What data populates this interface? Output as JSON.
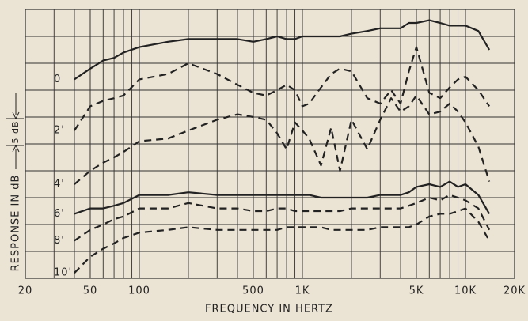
{
  "chart_data": {
    "type": "line",
    "title_x": "FREQUENCY IN HERTZ",
    "title_y": "RESPONSE IN dB",
    "scale_marker": "5 dB",
    "x": [
      40,
      50,
      60,
      70,
      80,
      100,
      150,
      200,
      300,
      400,
      500,
      600,
      700,
      800,
      900,
      1000,
      1100,
      1300,
      1500,
      1700,
      2000,
      2500,
      3000,
      3500,
      4000,
      4500,
      5000,
      6000,
      7000,
      8000,
      9000,
      10000,
      12000,
      14000
    ],
    "series": [
      {
        "name": "0",
        "color": "#222",
        "line_style": "solid",
        "values": [
          37,
          39,
          40.5,
          41,
          42,
          43,
          44,
          44.5,
          44.5,
          44.5,
          44,
          44.5,
          45,
          44.5,
          44.5,
          45,
          45,
          45,
          45,
          45,
          45.5,
          46,
          46.5,
          46.5,
          46.5,
          47.5,
          47.5,
          48,
          47.5,
          47,
          47,
          47,
          46,
          42.5
        ]
      },
      {
        "name": "2'",
        "color": "#222",
        "line_style": "dashed",
        "values": [
          27.5,
          32,
          33,
          33.5,
          34,
          37,
          38,
          40,
          38,
          36,
          34.5,
          34,
          35,
          36,
          35,
          32,
          32.5,
          35.5,
          38,
          39,
          38.5,
          33.5,
          32.5,
          35,
          32.5,
          38.5,
          43,
          34.5,
          33.5,
          35.5,
          37,
          37.5,
          35,
          32
        ]
      },
      {
        "name": "4'",
        "color": "#222",
        "line_style": "dashed",
        "values": [
          17.5,
          20,
          21.5,
          22.5,
          23.5,
          25.5,
          26,
          27.5,
          29.5,
          30.5,
          30,
          29.5,
          27,
          24,
          29,
          27.5,
          26,
          21,
          28,
          20,
          29.5,
          24,
          29.5,
          33.5,
          31,
          32,
          34,
          30.5,
          31,
          32.5,
          31,
          29,
          24.5,
          18
        ]
      },
      {
        "name": "6'",
        "color": "#222",
        "line_style": "solid",
        "values": [
          12,
          13,
          13,
          13.5,
          14,
          15.5,
          15.5,
          16,
          15.5,
          15.5,
          15.5,
          15.5,
          15.5,
          15.5,
          15.5,
          15.5,
          15.5,
          15,
          15,
          15,
          15,
          15,
          15.5,
          15.5,
          15.5,
          16,
          17,
          17.5,
          17,
          18,
          17,
          17.5,
          15.5,
          12
        ]
      },
      {
        "name": "8'",
        "color": "#222",
        "line_style": "dashed",
        "values": [
          7,
          9,
          10,
          11,
          11.5,
          13,
          13,
          14,
          13,
          13,
          12.5,
          12.5,
          13,
          13,
          12.5,
          12.5,
          12.5,
          12.5,
          12.5,
          12.5,
          13,
          13,
          13,
          13,
          13,
          13.5,
          14,
          15,
          14.5,
          15.5,
          15,
          14.5,
          13,
          9
        ]
      },
      {
        "name": "10'",
        "color": "#222",
        "line_style": "dashed",
        "values": [
          1,
          4,
          5.5,
          6.5,
          7.5,
          8.5,
          9,
          9.5,
          9,
          9,
          9,
          9,
          9,
          9.5,
          9.5,
          9.5,
          9.5,
          9.5,
          9,
          9,
          9,
          9,
          9.5,
          9.5,
          9.5,
          9.5,
          10,
          11.5,
          12,
          12,
          12.5,
          13,
          10.5,
          7
        ]
      }
    ],
    "xlim": [
      20,
      20000
    ],
    "xticks": [
      20,
      50,
      100,
      500,
      {
        "value": 1000,
        "label": "1K"
      },
      {
        "value": 5000,
        "label": "5K"
      },
      {
        "value": 10000,
        "label": "10K"
      },
      {
        "value": 20000,
        "label": "20K"
      }
    ],
    "xlog": true,
    "ylim": [
      0,
      50
    ],
    "yticks": [
      0,
      5,
      10,
      15,
      20,
      25,
      30,
      35,
      40,
      45,
      50
    ],
    "grid": true
  }
}
